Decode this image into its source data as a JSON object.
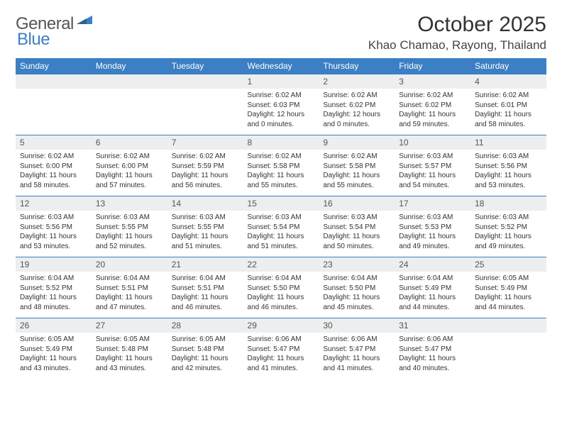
{
  "brand": {
    "part1": "General",
    "part2": "Blue"
  },
  "title": "October 2025",
  "location": "Khao Chamao, Rayong, Thailand",
  "colors": {
    "header_bg": "#3b7fc4",
    "header_fg": "#ffffff",
    "daynum_bg": "#eceeef",
    "text": "#333333",
    "brand_gray": "#555555",
    "brand_blue": "#3b7fc4"
  },
  "days_of_week": [
    "Sunday",
    "Monday",
    "Tuesday",
    "Wednesday",
    "Thursday",
    "Friday",
    "Saturday"
  ],
  "weeks": [
    [
      null,
      null,
      null,
      {
        "n": "1",
        "sr": "6:02 AM",
        "ss": "6:03 PM",
        "dl": "12 hours and 0 minutes."
      },
      {
        "n": "2",
        "sr": "6:02 AM",
        "ss": "6:02 PM",
        "dl": "12 hours and 0 minutes."
      },
      {
        "n": "3",
        "sr": "6:02 AM",
        "ss": "6:02 PM",
        "dl": "11 hours and 59 minutes."
      },
      {
        "n": "4",
        "sr": "6:02 AM",
        "ss": "6:01 PM",
        "dl": "11 hours and 58 minutes."
      }
    ],
    [
      {
        "n": "5",
        "sr": "6:02 AM",
        "ss": "6:00 PM",
        "dl": "11 hours and 58 minutes."
      },
      {
        "n": "6",
        "sr": "6:02 AM",
        "ss": "6:00 PM",
        "dl": "11 hours and 57 minutes."
      },
      {
        "n": "7",
        "sr": "6:02 AM",
        "ss": "5:59 PM",
        "dl": "11 hours and 56 minutes."
      },
      {
        "n": "8",
        "sr": "6:02 AM",
        "ss": "5:58 PM",
        "dl": "11 hours and 55 minutes."
      },
      {
        "n": "9",
        "sr": "6:02 AM",
        "ss": "5:58 PM",
        "dl": "11 hours and 55 minutes."
      },
      {
        "n": "10",
        "sr": "6:03 AM",
        "ss": "5:57 PM",
        "dl": "11 hours and 54 minutes."
      },
      {
        "n": "11",
        "sr": "6:03 AM",
        "ss": "5:56 PM",
        "dl": "11 hours and 53 minutes."
      }
    ],
    [
      {
        "n": "12",
        "sr": "6:03 AM",
        "ss": "5:56 PM",
        "dl": "11 hours and 53 minutes."
      },
      {
        "n": "13",
        "sr": "6:03 AM",
        "ss": "5:55 PM",
        "dl": "11 hours and 52 minutes."
      },
      {
        "n": "14",
        "sr": "6:03 AM",
        "ss": "5:55 PM",
        "dl": "11 hours and 51 minutes."
      },
      {
        "n": "15",
        "sr": "6:03 AM",
        "ss": "5:54 PM",
        "dl": "11 hours and 51 minutes."
      },
      {
        "n": "16",
        "sr": "6:03 AM",
        "ss": "5:54 PM",
        "dl": "11 hours and 50 minutes."
      },
      {
        "n": "17",
        "sr": "6:03 AM",
        "ss": "5:53 PM",
        "dl": "11 hours and 49 minutes."
      },
      {
        "n": "18",
        "sr": "6:03 AM",
        "ss": "5:52 PM",
        "dl": "11 hours and 49 minutes."
      }
    ],
    [
      {
        "n": "19",
        "sr": "6:04 AM",
        "ss": "5:52 PM",
        "dl": "11 hours and 48 minutes."
      },
      {
        "n": "20",
        "sr": "6:04 AM",
        "ss": "5:51 PM",
        "dl": "11 hours and 47 minutes."
      },
      {
        "n": "21",
        "sr": "6:04 AM",
        "ss": "5:51 PM",
        "dl": "11 hours and 46 minutes."
      },
      {
        "n": "22",
        "sr": "6:04 AM",
        "ss": "5:50 PM",
        "dl": "11 hours and 46 minutes."
      },
      {
        "n": "23",
        "sr": "6:04 AM",
        "ss": "5:50 PM",
        "dl": "11 hours and 45 minutes."
      },
      {
        "n": "24",
        "sr": "6:04 AM",
        "ss": "5:49 PM",
        "dl": "11 hours and 44 minutes."
      },
      {
        "n": "25",
        "sr": "6:05 AM",
        "ss": "5:49 PM",
        "dl": "11 hours and 44 minutes."
      }
    ],
    [
      {
        "n": "26",
        "sr": "6:05 AM",
        "ss": "5:49 PM",
        "dl": "11 hours and 43 minutes."
      },
      {
        "n": "27",
        "sr": "6:05 AM",
        "ss": "5:48 PM",
        "dl": "11 hours and 43 minutes."
      },
      {
        "n": "28",
        "sr": "6:05 AM",
        "ss": "5:48 PM",
        "dl": "11 hours and 42 minutes."
      },
      {
        "n": "29",
        "sr": "6:06 AM",
        "ss": "5:47 PM",
        "dl": "11 hours and 41 minutes."
      },
      {
        "n": "30",
        "sr": "6:06 AM",
        "ss": "5:47 PM",
        "dl": "11 hours and 41 minutes."
      },
      {
        "n": "31",
        "sr": "6:06 AM",
        "ss": "5:47 PM",
        "dl": "11 hours and 40 minutes."
      },
      null
    ]
  ],
  "labels": {
    "sunrise": "Sunrise:",
    "sunset": "Sunset:",
    "daylight": "Daylight:"
  }
}
